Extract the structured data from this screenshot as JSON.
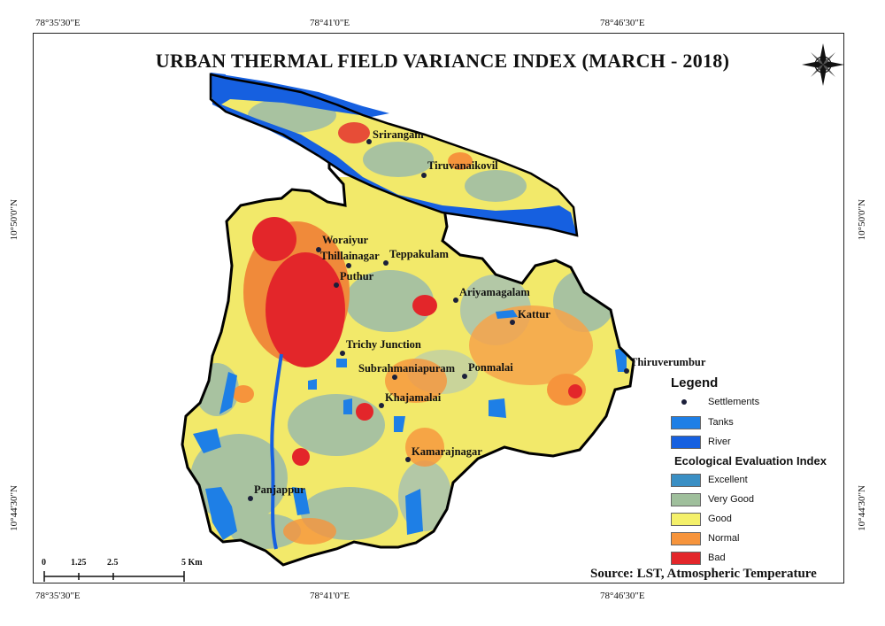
{
  "title": "URBAN THERMAL FIELD VARIANCE INDEX (MARCH - 2018)",
  "coordinates": {
    "top": [
      "78°35'30\"E",
      "78°41'0\"E",
      "78°46'30\"E"
    ],
    "bottom": [
      "78°35'30\"E",
      "78°41'0\"E",
      "78°46'30\"E"
    ],
    "left": [
      "10°50'0\"N",
      "10°44'30\"N"
    ],
    "right": [
      "10°50'0\"N",
      "10°44'30\"N"
    ]
  },
  "settlements": [
    "Srirangam",
    "Tiruvanaikovil",
    "Woraiyur",
    "Thillainagar",
    "Teppakulam",
    "Puthur",
    "Ariyamagalam",
    "Kattur",
    "Trichy Junction",
    "Subrahmaniapuram",
    "Ponmalai",
    "Thiruverumbur",
    "Khajamalai",
    "Kamarajnagar",
    "Panjappur"
  ],
  "legend": {
    "title": "Legend",
    "settlements_label": "Settlements",
    "tanks_label": "Tanks",
    "river_label": "River",
    "index_title": "Ecological Evaluation Index",
    "classes": [
      {
        "label": "Excellent",
        "color": "#3a8fc4"
      },
      {
        "label": "Very Good",
        "color": "#9fbf9c"
      },
      {
        "label": "Good",
        "color": "#f4f06a"
      },
      {
        "label": "Normal",
        "color": "#f6943c"
      },
      {
        "label": "Bad",
        "color": "#e3262a"
      }
    ],
    "tanks_color": "#1e7fe6",
    "river_color": "#1660e0"
  },
  "scale_bar": {
    "ticks": [
      "0",
      "1.25",
      "2.5",
      "5 Km"
    ]
  },
  "source": "Source: LST, Atmospheric Temperature",
  "north_arrow_icon": "compass-rose-icon"
}
